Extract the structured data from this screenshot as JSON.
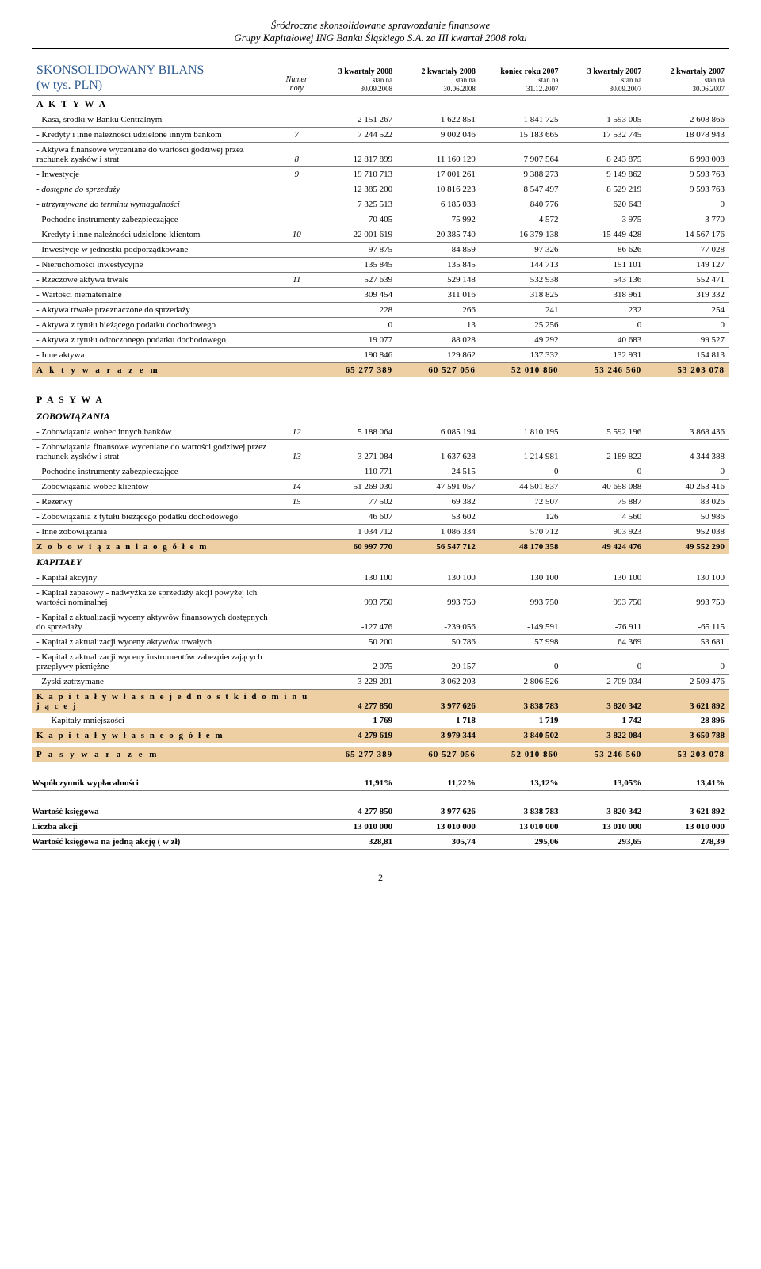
{
  "header": {
    "line1": "Śródroczne skonsolidowane sprawozdanie finansowe",
    "line2": "Grupy Kapitałowej ING Banku Śląskiego S.A. za III kwartał 2008 roku"
  },
  "title": {
    "line1": "SKONSOLIDOWANY BILANS",
    "line2": "(w tys. PLN)"
  },
  "noty_label1": "Numer",
  "noty_label2": "noty",
  "columns": [
    {
      "h1": "3 kwartały 2008",
      "h2": "stan na",
      "h3": "30.09.2008"
    },
    {
      "h1": "2 kwartały 2008",
      "h2": "stan na",
      "h3": "30.06.2008"
    },
    {
      "h1": "koniec roku 2007",
      "h2": "stan na",
      "h3": "31.12.2007"
    },
    {
      "h1": "3 kwartały 2007",
      "h2": "stan na",
      "h3": "30.09.2007"
    },
    {
      "h1": "2 kwartały 2007",
      "h2": "stan na",
      "h3": "30.06.2007"
    }
  ],
  "sections": {
    "aktywa": "A K T Y W A",
    "pasywa": "P A S Y W A",
    "zobowiazania": "ZOBOWIĄZANIA",
    "kapitaly": "KAPITAŁY"
  },
  "rows_aktywa": [
    {
      "label": "- Kasa, środki w Banku Centralnym",
      "noty": "",
      "v": [
        "2 151 267",
        "1 622 851",
        "1 841 725",
        "1 593 005",
        "2 608 866"
      ]
    },
    {
      "label": "- Kredyty i inne należności udzielone innym bankom",
      "noty": "7",
      "v": [
        "7 244 522",
        "9 002 046",
        "15 183 665",
        "17 532 745",
        "18 078 943"
      ]
    },
    {
      "label": "- Aktywa finansowe wyceniane do wartości godziwej przez rachunek zysków i strat",
      "noty": "8",
      "v": [
        "12 817 899",
        "11 160 129",
        "7 907 564",
        "8 243 875",
        "6 998 008"
      ]
    },
    {
      "label": "- Inwestycje",
      "noty": "9",
      "v": [
        "19 710 713",
        "17 001 261",
        "9 388 273",
        "9 149 862",
        "9 593 763"
      ]
    },
    {
      "label": "- dostępne do sprzedaży",
      "italic": true,
      "noty": "",
      "v": [
        "12 385 200",
        "10 816 223",
        "8 547 497",
        "8 529 219",
        "9 593 763"
      ]
    },
    {
      "label": "- utrzymywane do terminu wymagalności",
      "italic": true,
      "noty": "",
      "v": [
        "7 325 513",
        "6 185 038",
        "840 776",
        "620 643",
        "0"
      ]
    },
    {
      "label": "- Pochodne instrumenty zabezpieczające",
      "noty": "",
      "v": [
        "70 405",
        "75 992",
        "4 572",
        "3 975",
        "3 770"
      ]
    },
    {
      "label": "- Kredyty i inne należności udzielone klientom",
      "noty": "10",
      "v": [
        "22 001 619",
        "20 385 740",
        "16 379 138",
        "15 449 428",
        "14 567 176"
      ]
    },
    {
      "label": "- Inwestycje w jednostki podporządkowane",
      "noty": "",
      "v": [
        "97 875",
        "84 859",
        "97 326",
        "86 626",
        "77 028"
      ]
    },
    {
      "label": "- Nieruchomości inwestycyjne",
      "noty": "",
      "v": [
        "135 845",
        "135 845",
        "144 713",
        "151 101",
        "149 127"
      ]
    },
    {
      "label": "- Rzeczowe aktywa trwałe",
      "noty": "11",
      "v": [
        "527 639",
        "529 148",
        "532 938",
        "543 136",
        "552 471"
      ]
    },
    {
      "label": "- Wartości niematerialne",
      "noty": "",
      "v": [
        "309 454",
        "311 016",
        "318 825",
        "318 961",
        "319 332"
      ]
    },
    {
      "label": "- Aktywa trwałe przeznaczone do sprzedaży",
      "noty": "",
      "v": [
        "228",
        "266",
        "241",
        "232",
        "254"
      ]
    },
    {
      "label": "- Aktywa z tytułu bieżącego podatku dochodowego",
      "noty": "",
      "v": [
        "0",
        "13",
        "25 256",
        "0",
        "0"
      ]
    },
    {
      "label": "- Aktywa z tytułu odroczonego podatku dochodowego",
      "noty": "",
      "v": [
        "19 077",
        "88 028",
        "49 292",
        "40 683",
        "99 527"
      ]
    },
    {
      "label": "- Inne aktywa",
      "noty": "",
      "v": [
        "190 846",
        "129 862",
        "137 332",
        "132 931",
        "154 813"
      ]
    }
  ],
  "total_aktywa": {
    "label": "A k t y w a   r a z e m",
    "v": [
      "65 277 389",
      "60 527 056",
      "52 010 860",
      "53 246 560",
      "53 203 078"
    ]
  },
  "rows_zobow": [
    {
      "label": "- Zobowiązania wobec innych banków",
      "noty": "12",
      "v": [
        "5 188 064",
        "6 085 194",
        "1 810 195",
        "5 592 196",
        "3 868 436"
      ]
    },
    {
      "label": "- Zobowiązania finansowe wyceniane do wartości godziwej przez rachunek zysków i strat",
      "noty": "13",
      "v": [
        "3 271 084",
        "1 637 628",
        "1 214 981",
        "2 189 822",
        "4 344 388"
      ]
    },
    {
      "label": "- Pochodne instrumenty zabezpieczające",
      "noty": "",
      "v": [
        "110 771",
        "24 515",
        "0",
        "0",
        "0"
      ]
    },
    {
      "label": "- Zobowiązania wobec klientów",
      "noty": "14",
      "v": [
        "51 269 030",
        "47 591 057",
        "44 501 837",
        "40 658 088",
        "40 253 416"
      ]
    },
    {
      "label": "- Rezerwy",
      "noty": "15",
      "v": [
        "77 502",
        "69 382",
        "72 507",
        "75 887",
        "83 026"
      ]
    },
    {
      "label": "- Zobowiązania z tytułu bieżącego podatku dochodowego",
      "noty": "",
      "v": [
        "46 607",
        "53 602",
        "126",
        "4 560",
        "50 986"
      ]
    },
    {
      "label": "- Inne zobowiązania",
      "noty": "",
      "v": [
        "1 034 712",
        "1 086 334",
        "570 712",
        "903 923",
        "952 038"
      ]
    }
  ],
  "total_zobow": {
    "label": "Z o b o w i ą z a n i a   o g ó ł e m",
    "v": [
      "60 997 770",
      "56 547 712",
      "48 170 358",
      "49 424 476",
      "49 552 290"
    ]
  },
  "rows_kapitaly": [
    {
      "label": "- Kapitał akcyjny",
      "noty": "",
      "v": [
        "130 100",
        "130 100",
        "130 100",
        "130 100",
        "130 100"
      ]
    },
    {
      "label": "- Kapitał zapasowy - nadwyżka ze sprzedaży akcji powyżej ich wartości nominalnej",
      "noty": "",
      "v": [
        "993 750",
        "993 750",
        "993 750",
        "993 750",
        "993 750"
      ]
    },
    {
      "label": "- Kapitał z aktualizacji wyceny aktywów finansowych dostępnych do sprzedaży",
      "noty": "",
      "v": [
        "-127 476",
        "-239 056",
        "-149 591",
        "-76 911",
        "-65 115"
      ]
    },
    {
      "label": "- Kapitał z aktualizacji wyceny aktywów trwałych",
      "noty": "",
      "v": [
        "50 200",
        "50 786",
        "57 998",
        "64 369",
        "53 681"
      ]
    },
    {
      "label": "- Kapitał z aktualizacji wyceny instrumentów zabezpieczających przepływy pieniężne",
      "noty": "",
      "v": [
        "2 075",
        "-20 157",
        "0",
        "0",
        "0"
      ]
    },
    {
      "label": "- Zyski zatrzymane",
      "noty": "",
      "v": [
        "3 229 201",
        "3 062 203",
        "2 806 526",
        "2 709 034",
        "2 509 476"
      ]
    }
  ],
  "total_kap_dom": {
    "label": "K a p i t a ł y   w ł a s n e   j e d n o s t k i   d o m i n u j ą c e j",
    "v": [
      "4 277 850",
      "3 977 626",
      "3 838 783",
      "3 820 342",
      "3 621 892"
    ]
  },
  "row_mniejsz": {
    "label": "- Kapitały mniejszości",
    "v": [
      "1 769",
      "1 718",
      "1 719",
      "1 742",
      "28 896"
    ]
  },
  "total_kap_og": {
    "label": "K a p i t a ł y   w ł a s n e   o g ó ł e m",
    "v": [
      "4 279 619",
      "3 979 344",
      "3 840 502",
      "3 822 084",
      "3 650 788"
    ]
  },
  "total_pasywa": {
    "label": "P a s y w a   r a z e m",
    "v": [
      "65 277 389",
      "60 527 056",
      "52 010 860",
      "53 246 560",
      "53 203 078"
    ]
  },
  "ratios": [
    {
      "label": "Współczynnik wypłacalności",
      "v": [
        "11,91%",
        "11,22%",
        "13,12%",
        "13,05%",
        "13,41%"
      ]
    }
  ],
  "book": [
    {
      "label": "Wartość księgowa",
      "v": [
        "4 277 850",
        "3 977 626",
        "3 838 783",
        "3 820 342",
        "3 621 892"
      ]
    },
    {
      "label": "Liczba akcji",
      "v": [
        "13 010 000",
        "13 010 000",
        "13 010 000",
        "13 010 000",
        "13 010 000"
      ]
    },
    {
      "label": "Wartość księgowa na jedną akcję ( w zł)",
      "v": [
        "328,81",
        "305,74",
        "295,06",
        "293,65",
        "278,39"
      ]
    }
  ],
  "page_number": "2"
}
